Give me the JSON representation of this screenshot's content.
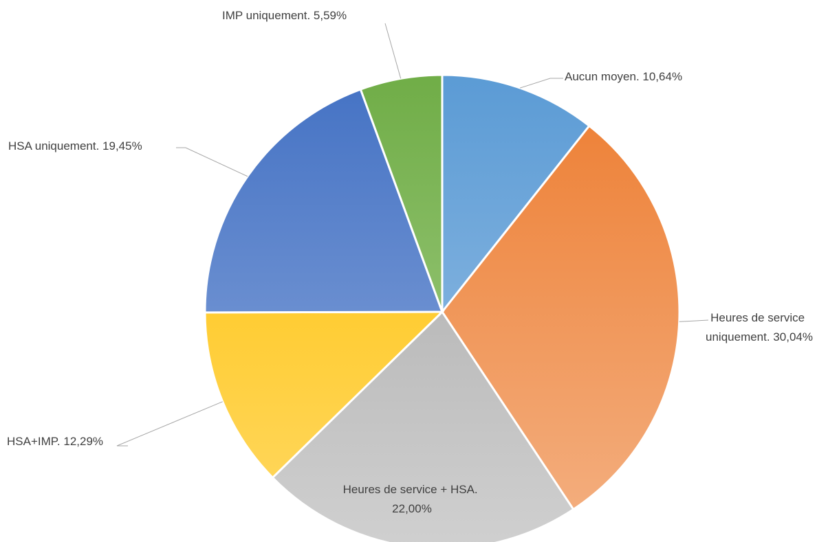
{
  "chart_data": {
    "type": "pie",
    "title": "",
    "slices": [
      {
        "label": "Aucun moyen. 10,64%",
        "value": 10.64,
        "color": "#5b9bd5",
        "color_light": "#9ec3e6"
      },
      {
        "label": "Heures de service uniquement. 30,04%",
        "lines": [
          "Heures de service",
          "uniquement. 30,04%"
        ],
        "value": 30.04,
        "color": "#ed7d31",
        "color_light": "#f4b183"
      },
      {
        "label": "Heures de service + HSA. 22,00%",
        "lines": [
          "Heures de service + HSA.",
          "22,00%"
        ],
        "value": 22.0,
        "color": "#a5a5a5",
        "color_light": "#d0d0d0"
      },
      {
        "label": "HSA+IMP. 12,29%",
        "value": 12.29,
        "color": "#ffc000",
        "color_light": "#ffd966"
      },
      {
        "label": "HSA uniquement. 19,45%",
        "value": 19.45,
        "color": "#4472c4",
        "color_light": "#8faadc"
      },
      {
        "label": "IMP uniquement. 5,59%",
        "value": 5.59,
        "color": "#70ad47",
        "color_light": "#a9d18e"
      }
    ]
  }
}
